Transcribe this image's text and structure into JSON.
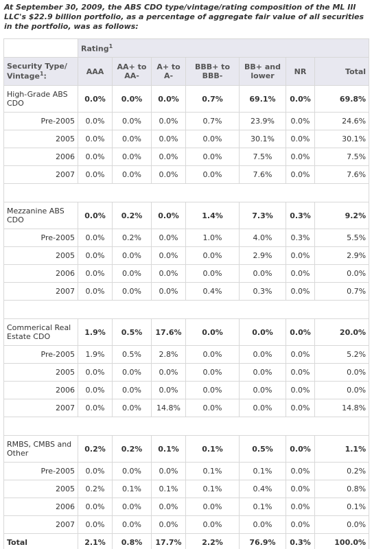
{
  "caption": "At September 30, 2009, the ABS CDO type/vintage/rating composition of the ML III LLC's $22.9 billion portfolio, as a percentage of aggregate fair value of all securities in the portfolio, was as follows:",
  "table": {
    "rating": "Rating",
    "rating_note": "1",
    "row_header": {
      "text": "Security Type/ Vintage",
      "note": "1",
      "after": ":"
    },
    "columns": [
      "AAA",
      "AA+ to AA-",
      "A+ to A-",
      "BBB+ to BBB-",
      "BB+ and lower",
      "NR",
      "Total"
    ],
    "groups": [
      {
        "name": "High-Grade ABS CDO",
        "values": [
          "0.0%",
          "0.0%",
          "0.0%",
          "0.7%",
          "69.1%",
          "0.0%",
          "69.8%"
        ],
        "rows": [
          {
            "vintage": "Pre-2005",
            "values": [
              "0.0%",
              "0.0%",
              "0.0%",
              "0.7%",
              "23.9%",
              "0.0%",
              "24.6%"
            ]
          },
          {
            "vintage": "2005",
            "values": [
              "0.0%",
              "0.0%",
              "0.0%",
              "0.0%",
              "30.1%",
              "0.0%",
              "30.1%"
            ]
          },
          {
            "vintage": "2006",
            "values": [
              "0.0%",
              "0.0%",
              "0.0%",
              "0.0%",
              "7.5%",
              "0.0%",
              "7.5%"
            ]
          },
          {
            "vintage": "2007",
            "values": [
              "0.0%",
              "0.0%",
              "0.0%",
              "0.0%",
              "7.6%",
              "0.0%",
              "7.6%"
            ]
          }
        ]
      },
      {
        "name": "Mezzanine ABS CDO",
        "values": [
          "0.0%",
          "0.2%",
          "0.0%",
          "1.4%",
          "7.3%",
          "0.3%",
          "9.2%"
        ],
        "rows": [
          {
            "vintage": "Pre-2005",
            "values": [
              "0.0%",
              "0.2%",
              "0.0%",
              "1.0%",
              "4.0%",
              "0.3%",
              "5.5%"
            ]
          },
          {
            "vintage": "2005",
            "values": [
              "0.0%",
              "0.0%",
              "0.0%",
              "0.0%",
              "2.9%",
              "0.0%",
              "2.9%"
            ]
          },
          {
            "vintage": "2006",
            "values": [
              "0.0%",
              "0.0%",
              "0.0%",
              "0.0%",
              "0.0%",
              "0.0%",
              "0.0%"
            ]
          },
          {
            "vintage": "2007",
            "values": [
              "0.0%",
              "0.0%",
              "0.0%",
              "0.4%",
              "0.3%",
              "0.0%",
              "0.7%"
            ]
          }
        ]
      },
      {
        "name": "Commerical Real Estate CDO",
        "values": [
          "1.9%",
          "0.5%",
          "17.6%",
          "0.0%",
          "0.0%",
          "0.0%",
          "20.0%"
        ],
        "rows": [
          {
            "vintage": "Pre-2005",
            "values": [
              "1.9%",
              "0.5%",
              "2.8%",
              "0.0%",
              "0.0%",
              "0.0%",
              "5.2%"
            ]
          },
          {
            "vintage": "2005",
            "values": [
              "0.0%",
              "0.0%",
              "0.0%",
              "0.0%",
              "0.0%",
              "0.0%",
              "0.0%"
            ]
          },
          {
            "vintage": "2006",
            "values": [
              "0.0%",
              "0.0%",
              "0.0%",
              "0.0%",
              "0.0%",
              "0.0%",
              "0.0%"
            ]
          },
          {
            "vintage": "2007",
            "values": [
              "0.0%",
              "0.0%",
              "14.8%",
              "0.0%",
              "0.0%",
              "0.0%",
              "14.8%"
            ]
          }
        ]
      },
      {
        "name": "RMBS, CMBS and Other",
        "values": [
          "0.2%",
          "0.2%",
          "0.1%",
          "0.1%",
          "0.5%",
          "0.0%",
          "1.1%"
        ],
        "rows": [
          {
            "vintage": "Pre-2005",
            "values": [
              "0.0%",
              "0.0%",
              "0.0%",
              "0.1%",
              "0.1%",
              "0.0%",
              "0.2%"
            ]
          },
          {
            "vintage": "2005",
            "values": [
              "0.2%",
              "0.1%",
              "0.1%",
              "0.1%",
              "0.4%",
              "0.0%",
              "0.8%"
            ]
          },
          {
            "vintage": "2006",
            "values": [
              "0.0%",
              "0.0%",
              "0.0%",
              "0.0%",
              "0.1%",
              "0.0%",
              "0.1%"
            ]
          },
          {
            "vintage": "2007",
            "values": [
              "0.0%",
              "0.0%",
              "0.0%",
              "0.0%",
              "0.0%",
              "0.0%",
              "0.0%"
            ]
          }
        ]
      }
    ],
    "total": {
      "label": "Total",
      "values": [
        "2.1%",
        "0.8%",
        "17.7%",
        "2.2%",
        "76.9%",
        "0.3%",
        "100.0%"
      ]
    }
  }
}
